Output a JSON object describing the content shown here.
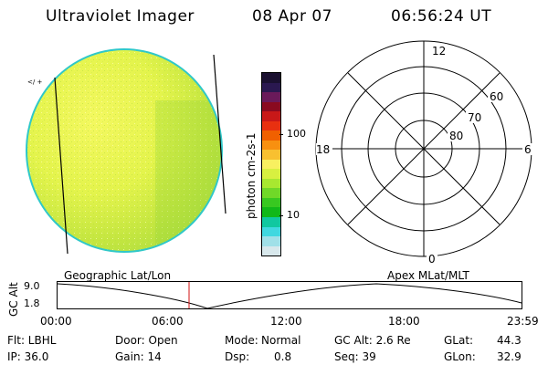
{
  "header": {
    "instrument": "Ultraviolet Imager",
    "date": "08 Apr 07",
    "time": "06:56:24 UT"
  },
  "colorbar": {
    "unit_label": "photon cm-2s-1",
    "ticks": [
      "100",
      "10"
    ],
    "colors": [
      "#1a1030",
      "#2a1850",
      "#6a1a5a",
      "#8a0a20",
      "#c81818",
      "#e83010",
      "#f06000",
      "#f89010",
      "#f8c030",
      "#f8f060",
      "#d8f040",
      "#a8e830",
      "#70d828",
      "#38c820",
      "#10b818",
      "#10c8a0",
      "#40d8e0",
      "#a0e0e8",
      "#d8e8ec"
    ]
  },
  "polar": {
    "mlt_labels": {
      "top": "12",
      "left": "18",
      "right": "6",
      "bottom": "0"
    },
    "lat_labels": [
      "60",
      "70",
      "80"
    ]
  },
  "timeline": {
    "left_title": "Geographic Lat/Lon",
    "right_title": "Apex MLat/MLT",
    "axis_label": "GC Alt",
    "y_max": "9.0",
    "y_min": "1.8",
    "x_ticks": [
      "00:00",
      "06:00",
      "12:00",
      "18:00",
      "23:59"
    ]
  },
  "info": {
    "flt": "Flt: LBHL",
    "ip": "IP: 36.0",
    "door": "Door: Open",
    "gain": "Gain: 14",
    "mode_label": "Mode:",
    "mode_value": "Normal",
    "dsp_label": "Dsp:",
    "dsp_value": "0.8",
    "gcalt": "GC Alt: 2.6 Re",
    "seq": "Seq: 39",
    "glat_label": "GLat:",
    "glat_value": "44.3",
    "glon_label": "GLon:",
    "glon_value": "32.9"
  }
}
